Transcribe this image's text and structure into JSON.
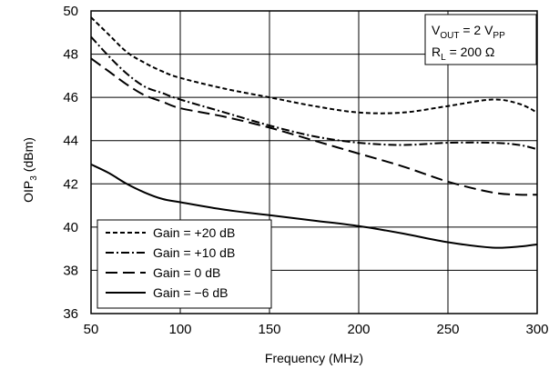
{
  "chart_data": {
    "type": "line",
    "title": "",
    "xlabel": "Frequency (MHz)",
    "ylabel_main": "OIP",
    "ylabel_sub": "3",
    "ylabel_unit": "(dBm)",
    "xlim": [
      50,
      300
    ],
    "ylim": [
      36,
      50
    ],
    "xticks": [
      "50",
      "100",
      "150",
      "200",
      "250",
      "300"
    ],
    "yticks": [
      "36",
      "38",
      "40",
      "42",
      "44",
      "46",
      "48",
      "50"
    ],
    "grid": true,
    "legend_position": "bottom-left",
    "annotation": {
      "line1_main": "V",
      "line1_sub": "OUT",
      "line1_rest": " = 2 V",
      "line1_sub2": "PP",
      "line2_main": "R",
      "line2_sub": "L",
      "line2_rest": " = 200 Ω"
    },
    "series": [
      {
        "name": "Gain = +20 dB",
        "dash": "short-dash",
        "x": [
          50,
          60,
          70,
          80,
          90,
          100,
          125,
          150,
          175,
          200,
          225,
          250,
          275,
          290,
          300
        ],
        "y": [
          49.7,
          48.9,
          48.1,
          47.6,
          47.2,
          46.9,
          46.4,
          46.0,
          45.6,
          45.3,
          45.3,
          45.6,
          45.9,
          45.7,
          45.3
        ]
      },
      {
        "name": "Gain = +10 dB",
        "dash": "dash-dot",
        "x": [
          50,
          60,
          70,
          80,
          90,
          100,
          125,
          150,
          175,
          200,
          225,
          250,
          275,
          290,
          300
        ],
        "y": [
          48.8,
          47.9,
          47.1,
          46.5,
          46.2,
          45.9,
          45.3,
          44.7,
          44.2,
          43.9,
          43.8,
          43.9,
          43.9,
          43.8,
          43.6
        ]
      },
      {
        "name": "Gain = 0 dB",
        "dash": "long-dash",
        "x": [
          50,
          60,
          70,
          80,
          90,
          100,
          125,
          150,
          175,
          200,
          225,
          250,
          275,
          290,
          300
        ],
        "y": [
          47.8,
          47.2,
          46.6,
          46.1,
          45.8,
          45.5,
          45.1,
          44.6,
          44.0,
          43.4,
          42.8,
          42.1,
          41.6,
          41.5,
          41.5
        ]
      },
      {
        "name": "Gain = −6 dB",
        "dash": "solid",
        "x": [
          50,
          60,
          70,
          80,
          90,
          100,
          125,
          150,
          175,
          200,
          225,
          250,
          275,
          290,
          300
        ],
        "y": [
          42.9,
          42.5,
          42.0,
          41.6,
          41.3,
          41.15,
          40.8,
          40.55,
          40.3,
          40.05,
          39.7,
          39.3,
          39.05,
          39.1,
          39.2
        ]
      }
    ]
  }
}
